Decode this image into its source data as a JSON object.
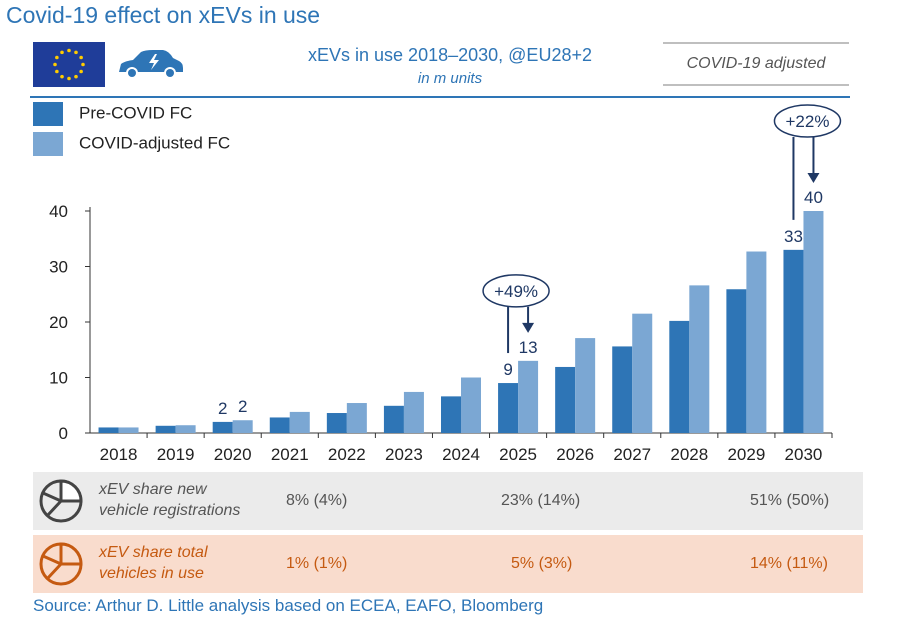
{
  "title": "Covid-19 effect on xEVs in use",
  "subtitle": "xEVs in use 2018–2030, @EU28+2",
  "units": "in m units",
  "covid_note": "COVID-19 adjusted",
  "colors": {
    "pre": "#2e75b6",
    "adj": "#7ba7d3",
    "accent": "#2e75b6",
    "row1_bg": "#ebebeb",
    "row2_bg": "#f9dccd",
    "row2_text": "#c55a11"
  },
  "legend": [
    {
      "label": "Pre-COVID FC",
      "color": "#2e75b6"
    },
    {
      "label": "COVID-adjusted FC",
      "color": "#7ba7d3"
    }
  ],
  "chart_data": {
    "type": "bar",
    "categories": [
      "2018",
      "2019",
      "2020",
      "2021",
      "2022",
      "2023",
      "2024",
      "2025",
      "2026",
      "2027",
      "2028",
      "2029",
      "2030"
    ],
    "series": [
      {
        "name": "Pre-COVID FC",
        "values": [
          1.0,
          1.3,
          2.0,
          2.8,
          3.6,
          4.9,
          6.6,
          9,
          11.9,
          15.6,
          20.2,
          25.9,
          33
        ]
      },
      {
        "name": "COVID-adjusted FC",
        "values": [
          1.0,
          1.4,
          2.3,
          3.8,
          5.4,
          7.4,
          10.0,
          13,
          17.1,
          21.5,
          26.6,
          32.7,
          40
        ]
      }
    ],
    "ylim": [
      0,
      40
    ],
    "yticks": [
      0,
      10,
      20,
      30,
      40
    ],
    "data_labels": [
      {
        "category": "2020",
        "series": 0,
        "text": "2"
      },
      {
        "category": "2020",
        "series": 1,
        "text": "2"
      },
      {
        "category": "2025",
        "series": 0,
        "text": "9"
      },
      {
        "category": "2025",
        "series": 1,
        "text": "13"
      },
      {
        "category": "2030",
        "series": 0,
        "text": "33"
      },
      {
        "category": "2030",
        "series": 1,
        "text": "40"
      }
    ],
    "annotations": [
      {
        "category": "2025",
        "text": "+49%"
      },
      {
        "category": "2030",
        "text": "+22%"
      }
    ]
  },
  "rows": [
    {
      "label_line1": "xEV share new",
      "label_line2": "vehicle registrations",
      "values": [
        "8% (4%)",
        "23% (14%)",
        "51% (50%)"
      ]
    },
    {
      "label_line1": "xEV share total",
      "label_line2": "vehicles in use",
      "values": [
        "1% (1%)",
        "5% (3%)",
        "14% (11%)"
      ]
    }
  ],
  "source": "Source: Arthur D. Little analysis based on ECEA, EAFO, Bloomberg"
}
